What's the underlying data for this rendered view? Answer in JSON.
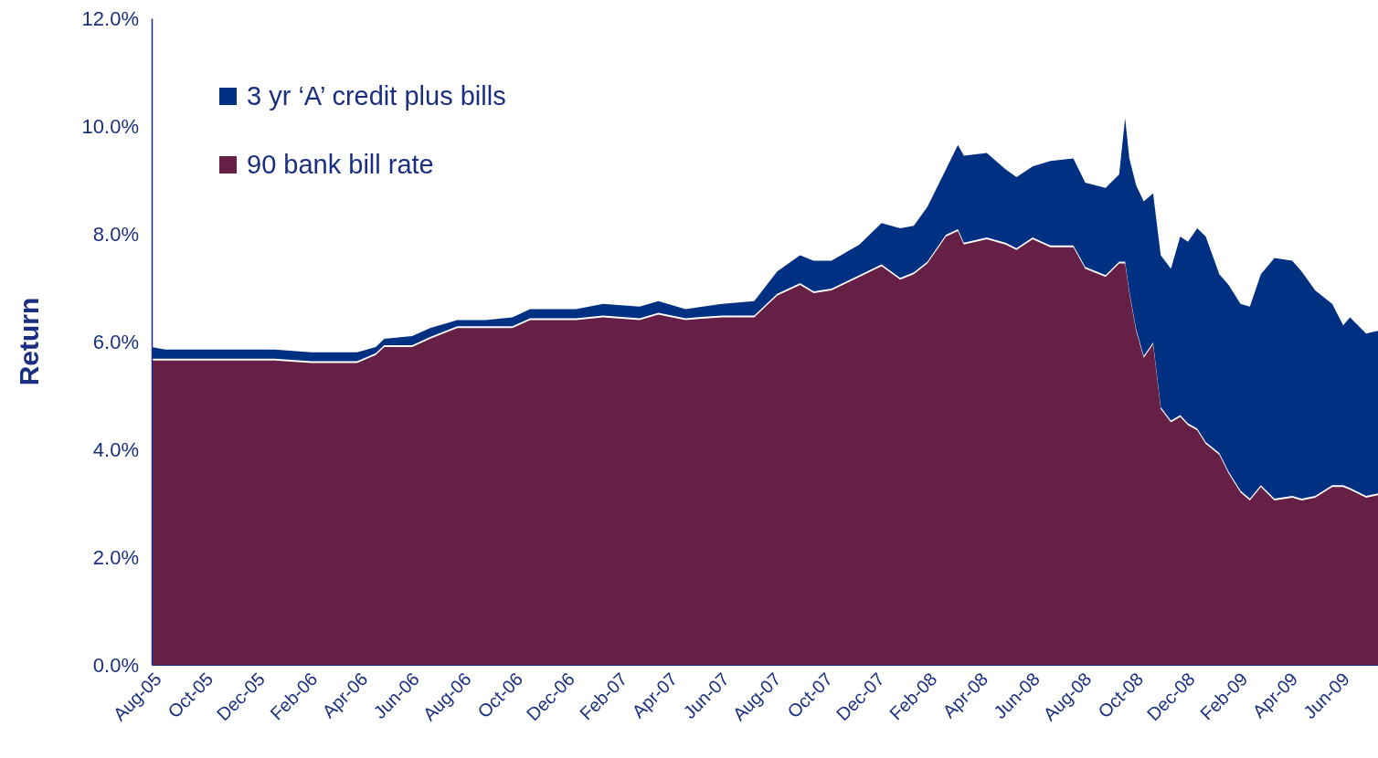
{
  "chart_data": {
    "type": "area",
    "ylabel": "Return",
    "x": [
      "2005-08-01",
      "2005-08-17",
      "2005-12-24",
      "2006-02-05",
      "2006-03-31",
      "2006-04-22",
      "2006-05-02",
      "2006-06-04",
      "2006-06-25",
      "2006-07-27",
      "2006-08-29",
      "2006-09-30",
      "2006-10-21",
      "2006-12-14",
      "2007-01-15",
      "2007-02-27",
      "2007-03-21",
      "2007-04-22",
      "2007-06-04",
      "2007-07-12",
      "2007-08-08",
      "2007-09-04",
      "2007-09-20",
      "2007-10-11",
      "2007-11-13",
      "2007-12-09",
      "2007-12-31",
      "2008-01-16",
      "2008-02-01",
      "2008-02-23",
      "2008-03-08",
      "2008-03-15",
      "2008-04-11",
      "2008-05-03",
      "2008-05-16",
      "2008-06-04",
      "2008-06-25",
      "2008-07-22",
      "2008-08-05",
      "2008-08-29",
      "2008-09-14",
      "2008-09-21",
      "2008-09-26",
      "2008-10-04",
      "2008-10-13",
      "2008-10-24",
      "2008-11-02",
      "2008-11-14",
      "2008-11-25",
      "2008-12-04",
      "2008-12-15",
      "2008-12-25",
      "2009-01-10",
      "2009-01-21",
      "2009-02-04",
      "2009-02-15",
      "2009-02-28",
      "2009-03-16",
      "2009-04-06",
      "2009-04-17",
      "2009-05-03",
      "2009-05-23",
      "2009-06-05",
      "2009-06-13",
      "2009-07-02",
      "2009-07-16"
    ],
    "series": [
      {
        "name": "3 yr ‘A’ credit plus bills",
        "color": "#003082",
        "values": [
          5.9,
          5.85,
          5.85,
          5.8,
          5.8,
          5.9,
          6.05,
          6.1,
          6.25,
          6.4,
          6.4,
          6.45,
          6.6,
          6.6,
          6.7,
          6.65,
          6.75,
          6.6,
          6.7,
          6.75,
          7.3,
          7.6,
          7.5,
          7.5,
          7.8,
          8.2,
          8.1,
          8.15,
          8.5,
          9.2,
          9.65,
          9.45,
          9.5,
          9.2,
          9.05,
          9.25,
          9.35,
          9.4,
          8.95,
          8.85,
          9.1,
          10.15,
          9.4,
          8.9,
          8.6,
          8.75,
          7.6,
          7.35,
          7.95,
          7.85,
          8.1,
          7.95,
          7.25,
          7.05,
          6.7,
          6.65,
          7.25,
          7.55,
          7.5,
          7.3,
          6.95,
          6.7,
          6.3,
          6.45,
          6.15,
          6.2
        ]
      },
      {
        "name": "90 bank bill rate",
        "color": "#661f45",
        "values": [
          5.65,
          5.65,
          5.65,
          5.6,
          5.6,
          5.75,
          5.9,
          5.9,
          6.05,
          6.25,
          6.25,
          6.25,
          6.4,
          6.4,
          6.45,
          6.4,
          6.5,
          6.4,
          6.45,
          6.45,
          6.85,
          7.05,
          6.9,
          6.95,
          7.2,
          7.4,
          7.15,
          7.25,
          7.45,
          7.95,
          8.05,
          7.8,
          7.9,
          7.8,
          7.7,
          7.9,
          7.75,
          7.75,
          7.35,
          7.2,
          7.45,
          7.45,
          6.9,
          6.2,
          5.7,
          5.95,
          4.75,
          4.5,
          4.6,
          4.45,
          4.35,
          4.1,
          3.9,
          3.55,
          3.2,
          3.05,
          3.3,
          3.05,
          3.1,
          3.05,
          3.1,
          3.3,
          3.3,
          3.25,
          3.1,
          3.15
        ]
      }
    ],
    "xlim": [
      "2005-08-01",
      "2009-07-16"
    ],
    "xticks": [
      {
        "value": "2005-08",
        "label": "Aug-05"
      },
      {
        "value": "2005-10",
        "label": "Oct-05"
      },
      {
        "value": "2005-12",
        "label": "Dec-05"
      },
      {
        "value": "2006-02",
        "label": "Feb-06"
      },
      {
        "value": "2006-04",
        "label": "Apr-06"
      },
      {
        "value": "2006-06",
        "label": "Jun-06"
      },
      {
        "value": "2006-08",
        "label": "Aug-06"
      },
      {
        "value": "2006-10",
        "label": "Oct-06"
      },
      {
        "value": "2006-12",
        "label": "Dec-06"
      },
      {
        "value": "2007-02",
        "label": "Feb-07"
      },
      {
        "value": "2007-04",
        "label": "Apr-07"
      },
      {
        "value": "2007-06",
        "label": "Jun-07"
      },
      {
        "value": "2007-08",
        "label": "Aug-07"
      },
      {
        "value": "2007-10",
        "label": "Oct-07"
      },
      {
        "value": "2007-12",
        "label": "Dec-07"
      },
      {
        "value": "2008-02",
        "label": "Feb-08"
      },
      {
        "value": "2008-04",
        "label": "Apr-08"
      },
      {
        "value": "2008-06",
        "label": "Jun-08"
      },
      {
        "value": "2008-08",
        "label": "Aug-08"
      },
      {
        "value": "2008-10",
        "label": "Oct-08"
      },
      {
        "value": "2008-12",
        "label": "Dec-08"
      },
      {
        "value": "2009-02",
        "label": "Feb-09"
      },
      {
        "value": "2009-04",
        "label": "Apr-09"
      },
      {
        "value": "2009-06",
        "label": "Jun-09"
      }
    ],
    "ylim": [
      0,
      12
    ],
    "yticks": [
      {
        "value": 0,
        "label": "0.0%"
      },
      {
        "value": 2,
        "label": "2.0%"
      },
      {
        "value": 4,
        "label": "4.0%"
      },
      {
        "value": 6,
        "label": "6.0%"
      },
      {
        "value": 8,
        "label": "8.0%"
      },
      {
        "value": 10,
        "label": "10.0%"
      },
      {
        "value": 12,
        "label": "12.0%"
      }
    ],
    "legend": "top left",
    "grid": false
  }
}
